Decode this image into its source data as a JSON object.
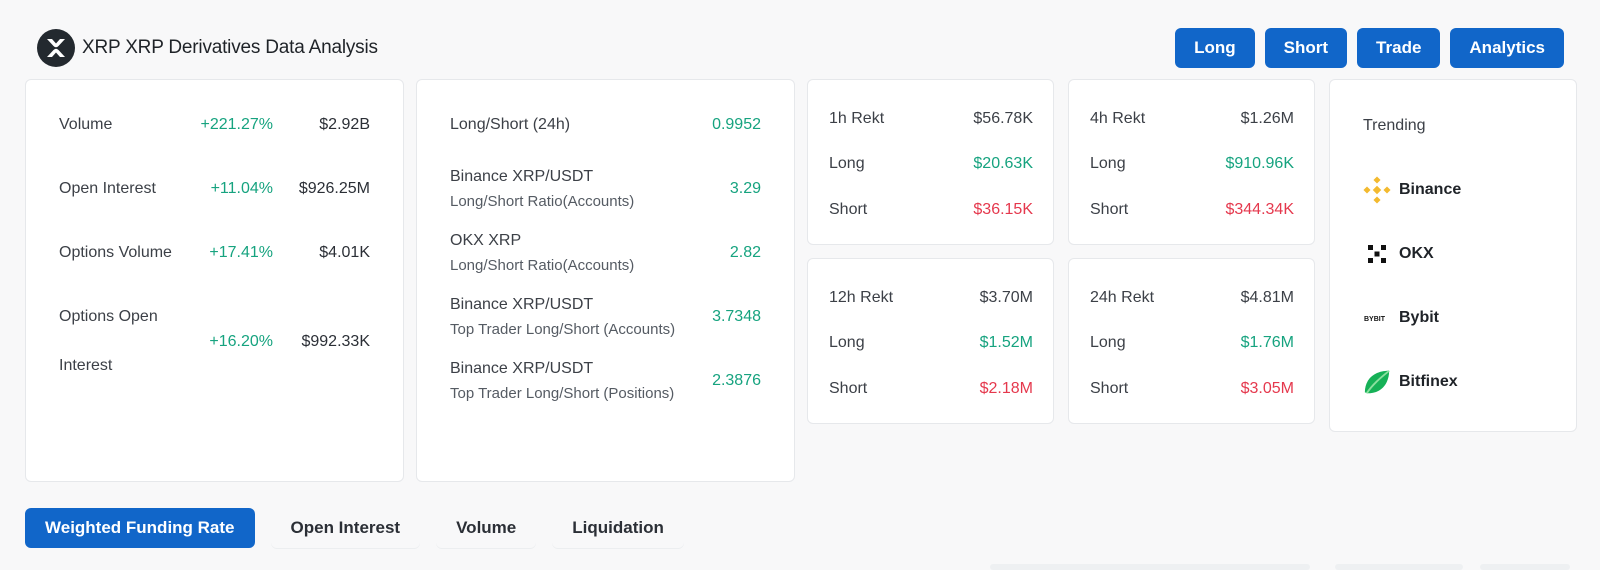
{
  "header": {
    "title": "XRP XRP Derivatives Data Analysis",
    "logo_icon": "xrp-logo-icon",
    "actions": [
      "Long",
      "Short",
      "Trade",
      "Analytics"
    ]
  },
  "volume_card": {
    "rows": [
      {
        "label": "Volume",
        "pct": "+221.27%",
        "amount": "$2.92B"
      },
      {
        "label": "Open Interest",
        "pct": "+11.04%",
        "amount": "$926.25M"
      },
      {
        "label": "Options Volume",
        "pct": "+17.41%",
        "amount": "$4.01K"
      },
      {
        "label_line1": "Options Open",
        "label_line2": "Interest",
        "pct": "+16.20%",
        "amount": "$992.33K"
      }
    ]
  },
  "ratio_card": {
    "rows": [
      {
        "label": "Long/Short (24h)",
        "sub": "",
        "value": "0.9952"
      },
      {
        "label": "Binance XRP/USDT",
        "sub": "Long/Short Ratio(Accounts)",
        "value": "3.29"
      },
      {
        "label": "OKX XRP",
        "sub": "Long/Short Ratio(Accounts)",
        "value": "2.82"
      },
      {
        "label": "Binance XRP/USDT",
        "sub": "Top Trader Long/Short (Accounts)",
        "value": "3.7348"
      },
      {
        "label": "Binance XRP/USDT",
        "sub": "Top Trader Long/Short (Positions)",
        "value": "2.3876"
      }
    ]
  },
  "rekt": {
    "h1": {
      "title": "1h Rekt",
      "total": "$56.78K",
      "long_label": "Long",
      "long": "$20.63K",
      "short_label": "Short",
      "short": "$36.15K"
    },
    "h4": {
      "title": "4h Rekt",
      "total": "$1.26M",
      "long_label": "Long",
      "long": "$910.96K",
      "short_label": "Short",
      "short": "$344.34K"
    },
    "h12": {
      "title": "12h Rekt",
      "total": "$3.70M",
      "long_label": "Long",
      "long": "$1.52M",
      "short_label": "Short",
      "short": "$2.18M"
    },
    "h24": {
      "title": "24h Rekt",
      "total": "$4.81M",
      "long_label": "Long",
      "long": "$1.76M",
      "short_label": "Short",
      "short": "$3.05M"
    }
  },
  "trending": {
    "title": "Trending",
    "exchanges": [
      {
        "name": "Binance",
        "icon": "binance-icon"
      },
      {
        "name": "OKX",
        "icon": "okx-icon"
      },
      {
        "name": "Bybit",
        "icon": "bybit-icon",
        "icon_text": "BYBIT"
      },
      {
        "name": "Bitfinex",
        "icon": "bitfinex-icon"
      }
    ]
  },
  "tabs": [
    "Weighted Funding Rate",
    "Open Interest",
    "Volume",
    "Liquidation"
  ],
  "colors": {
    "accent": "#1166c9",
    "positive": "#16a37f",
    "negative": "#e5384d"
  }
}
